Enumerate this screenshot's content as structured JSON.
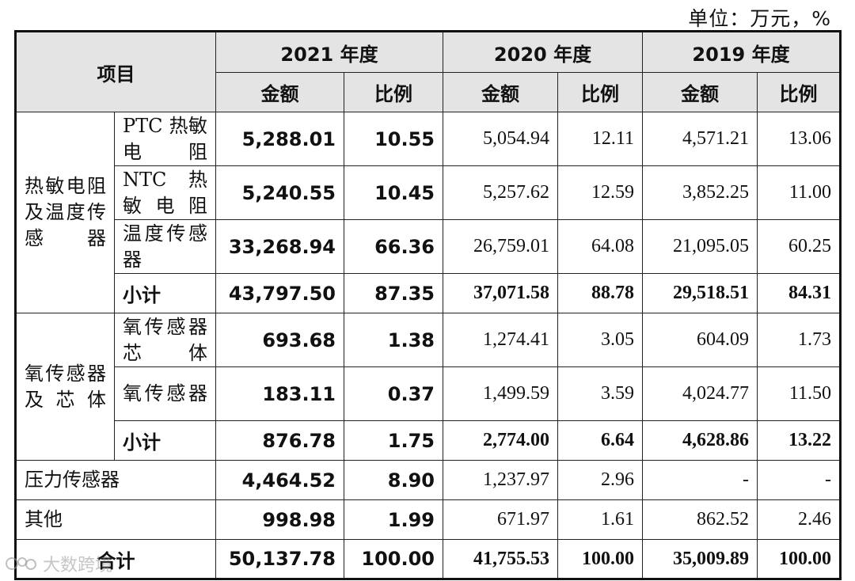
{
  "unit_label": "单位：万元，%",
  "header": {
    "item": "项目",
    "year_2021": "2021 年度",
    "year_2020": "2020 年度",
    "year_2019": "2019 年度",
    "amount": "金额",
    "ratio": "比例"
  },
  "groups": {
    "thermal": "热敏电阻及温度传感器",
    "oxygen": "氧传感器及芯体"
  },
  "rows": [
    {
      "label": "PTC 热敏电阻",
      "a2021": "5,288.01",
      "r2021": "10.55",
      "a2020": "5,054.94",
      "r2020": "12.11",
      "a2019": "4,571.21",
      "r2019": "13.06"
    },
    {
      "label": "NTC 热敏电阻",
      "a2021": "5,240.55",
      "r2021": "10.45",
      "a2020": "5,257.62",
      "r2020": "12.59",
      "a2019": "3,852.25",
      "r2019": "11.00"
    },
    {
      "label": "温度传感器",
      "a2021": "33,268.94",
      "r2021": "66.36",
      "a2020": "26,759.01",
      "r2020": "64.08",
      "a2019": "21,095.05",
      "r2019": "60.25"
    },
    {
      "label": "小计",
      "a2021": "43,797.50",
      "r2021": "87.35",
      "a2020": "37,071.58",
      "r2020": "88.78",
      "a2019": "29,518.51",
      "r2019": "84.31"
    },
    {
      "label": "氧传感器芯体",
      "a2021": "693.68",
      "r2021": "1.38",
      "a2020": "1,274.41",
      "r2020": "3.05",
      "a2019": "604.09",
      "r2019": "1.73"
    },
    {
      "label": "氧传感器",
      "a2021": "183.11",
      "r2021": "0.37",
      "a2020": "1,499.59",
      "r2020": "3.59",
      "a2019": "4,024.77",
      "r2019": "11.50"
    },
    {
      "label": "小计",
      "a2021": "876.78",
      "r2021": "1.75",
      "a2020": "2,774.00",
      "r2020": "6.64",
      "a2019": "4,628.86",
      "r2019": "13.22"
    },
    {
      "label": "压力传感器",
      "a2021": "4,464.52",
      "r2021": "8.90",
      "a2020": "1,237.97",
      "r2020": "2.96",
      "a2019": "-",
      "r2019": "-"
    },
    {
      "label": "其他",
      "a2021": "998.98",
      "r2021": "1.99",
      "a2020": "671.97",
      "r2020": "1.61",
      "a2019": "862.52",
      "r2019": "2.46"
    },
    {
      "label": "合计",
      "a2021": "50,137.78",
      "r2021": "100.00",
      "a2020": "41,755.53",
      "r2020": "100.00",
      "a2019": "35,009.89",
      "r2019": "100.00"
    }
  ],
  "watermark": "大数跨境"
}
